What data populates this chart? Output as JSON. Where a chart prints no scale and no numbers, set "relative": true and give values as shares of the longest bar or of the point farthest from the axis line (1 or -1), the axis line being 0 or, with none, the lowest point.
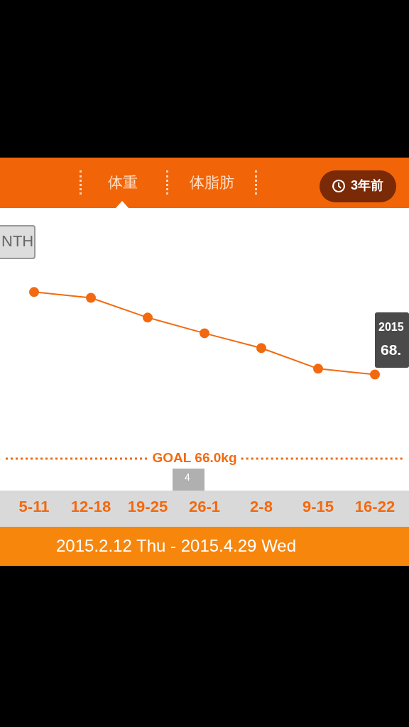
{
  "chart_data": {
    "type": "line",
    "relative": true,
    "categories": [
      "5-11",
      "12-18",
      "19-25",
      "26-1",
      "2-8",
      "9-15",
      "16-22"
    ],
    "series": [
      {
        "color": "#f26a10",
        "values": [
          1,
          0.93,
          0.69,
          0.5,
          0.32,
          0.07,
          0
        ]
      }
    ],
    "marker": "circle",
    "line_style": "solid",
    "legend": false,
    "ref_lines": [
      {
        "axis": "y",
        "value": -1.02,
        "label": "GOAL 66.0kg",
        "color": "#f26a10",
        "line_style": "dotted"
      }
    ],
    "annotations": [
      "体重",
      "体脂肪",
      "3年前",
      "NTH",
      "2015",
      "68.",
      "4",
      "2015.2.12 Thu - 2015.4.29 Wed"
    ]
  }
}
